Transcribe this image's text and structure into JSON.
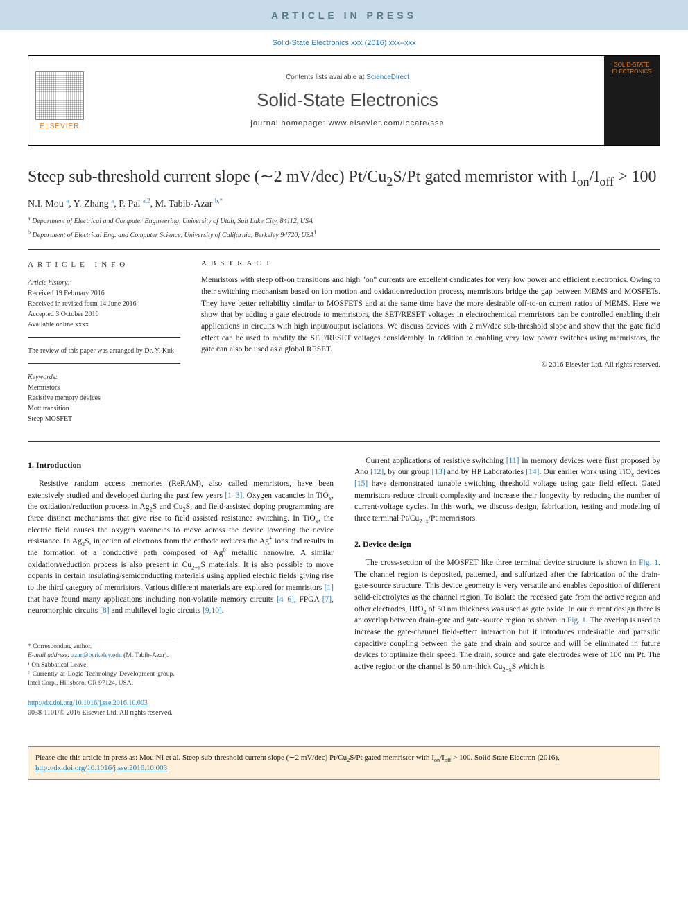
{
  "banner": "ARTICLE IN PRESS",
  "citation_top": "Solid-State Electronics xxx (2016) xxx–xxx",
  "header": {
    "contents_line_prefix": "Contents lists available at ",
    "contents_link": "ScienceDirect",
    "journal_title": "Solid-State Electronics",
    "homepage_label": "journal homepage: www.elsevier.com/locate/sse",
    "elsevier_label": "ELSEVIER",
    "cover_text": "SOLID-STATE ELECTRONICS"
  },
  "article": {
    "title_html": "Steep sub-threshold current slope (∼2 mV/dec) Pt/Cu<sub>2</sub>S/Pt gated memristor with I<sub>on</sub>/I<sub>off</sub> > 100",
    "authors_html": "N.I. Mou <sup>a</sup>, Y. Zhang <sup>a</sup>, P. Pai <sup>a,2</sup>, M. Tabib-Azar <sup>b,*</sup>",
    "affiliations": [
      "<sup>a</sup> Department of Electrical and Computer Engineering, University of Utah, Salt Lake City, 84112, USA",
      "<sup>b</sup> Department of Electrical Eng. and Computer Science, University of California, Berkeley 94720, USA<sup>1</sup>"
    ]
  },
  "info": {
    "heading": "ARTICLE INFO",
    "history_label": "Article history:",
    "history": [
      "Received 19 February 2016",
      "Received in revised form 14 June 2016",
      "Accepted 3 October 2016",
      "Available online xxxx"
    ],
    "review_note": "The review of this paper was arranged by Dr. Y. Kuk",
    "keywords_label": "Keywords:",
    "keywords": [
      "Memristors",
      "Resistive memory devices",
      "Mott transition",
      "Steep MOSFET"
    ]
  },
  "abstract": {
    "heading": "ABSTRACT",
    "text": "Memristors with steep off-on transitions and high \"on\" currents are excellent candidates for very low power and efficient electronics. Owing to their switching mechanism based on ion motion and oxidation/reduction process, memristors bridge the gap between MEMS and MOSFETs. They have better reliability similar to MOSFETS and at the same time have the more desirable off-to-on current ratios of MEMS. Here we show that by adding a gate electrode to memristors, the SET/RESET voltages in electrochemical memristors can be controlled enabling their applications in circuits with high input/output isolations. We discuss devices with 2 mV/dec sub-threshold slope and show that the gate field effect can be used to modify the SET/RESET voltages considerably. In addition to enabling very low power switches using memristors, the gate can also be used as a global RESET.",
    "copyright": "© 2016 Elsevier Ltd. All rights reserved."
  },
  "sections": {
    "intro_heading": "1. Introduction",
    "intro_p1_html": "Resistive random access memories (ReRAM), also called memristors, have been extensively studied and developed during the past few years <span class=\"ref-link\">[1–3]</span>. Oxygen vacancies in TiO<sub>x</sub>, the oxidation/reduction process in Ag<sub>2</sub>S and Cu<sub>2</sub>S, and field-assisted doping programming are three distinct mechanisms that give rise to field assisted resistance switching. In TiO<sub>x</sub>, the electric field causes the oxygen vacancies to move across the device lowering the device resistance. In Ag<sub>2</sub>S, injection of electrons from the cathode reduces the Ag<sup>+</sup> ions and results in the formation of a conductive path composed of Ag<sup>0</sup> metallic nanowire. A similar oxidation/reduction process is also present in Cu<sub>2−x</sub>S materials. It is also possible to move dopants in certain insulating/semiconducting materials using applied electric fields giving rise to the third category of memristors. Various different materials are explored for memristors <span class=\"ref-link\">[1]</span> that have found many applications including non-volatile memory circuits <span class=\"ref-link\">[4–6]</span>, FPGA <span class=\"ref-link\">[7]</span>, neuromorphic circuits <span class=\"ref-link\">[8]</span> and multilevel logic circuits <span class=\"ref-link\">[9,10]</span>.",
    "intro_p2_html": "Current applications of resistive switching <span class=\"ref-link\">[11]</span> in memory devices were first proposed by Ano <span class=\"ref-link\">[12]</span>, by our group <span class=\"ref-link\">[13]</span> and by HP Laboratories <span class=\"ref-link\">[14]</span>. Our earlier work using TiO<sub>x</sub> devices <span class=\"ref-link\">[15]</span> have demonstrated tunable switching threshold voltage using gate field effect. Gated memristors reduce circuit complexity and increase their longevity by reducing the number of current-voltage cycles. In this work, we discuss design, fabrication, testing and modeling of three terminal Pt/Cu<sub>2−x</sub>/Pt memristors.",
    "design_heading": "2. Device design",
    "design_p1_html": "The cross-section of the MOSFET like three terminal device structure is shown in <span class=\"ref-link\">Fig. 1</span>. The channel region is deposited, patterned, and sulfurized after the fabrication of the drain-gate-source structure. This device geometry is very versatile and enables deposition of different solid-electrolytes as the channel region. To isolate the recessed gate from the active region and other electrodes, HfO<sub>2</sub> of 50 nm thickness was used as gate oxide. In our current design there is an overlap between drain-gate and gate-source region as shown in <span class=\"ref-link\">Fig. 1</span>. The overlap is used to increase the gate-channel field-effect interaction but it introduces undesirable and parasitic capacitive coupling between the gate and drain and source and will be eliminated in future devices to optimize their speed. The drain, source and gate electrodes were of 100 nm Pt. The active region or the channel is 50 nm-thick Cu<sub>2−x</sub>S which is"
  },
  "footnotes": {
    "corresponding": "* Corresponding author.",
    "email_label": "E-mail address: ",
    "email": "azar@berkeley.edu",
    "email_suffix": " (M. Tabib-Azar).",
    "note1": "¹ On Sabbatical Leave.",
    "note2": "² Currently at Logic Technology Development group, Intel Corp., Hillsboro, OR 97124, USA."
  },
  "doi": {
    "url": "http://dx.doi.org/10.1016/j.sse.2016.10.003",
    "issn": "0038-1101/© 2016 Elsevier Ltd. All rights reserved."
  },
  "citebox_html": "Please cite this article in press as: Mou NI et al. Steep sub-threshold current slope (∼2 mV/dec) Pt/Cu<sub>2</sub>S/Pt gated memristor with I<sub>on</sub>/I<sub>off</sub> > 100. Solid State Electron (2016), <a href=\"#\">http://dx.doi.org/10.1016/j.sse.2016.10.003</a>",
  "colors": {
    "banner_bg": "#c8dbe8",
    "banner_text": "#5a7a8a",
    "link": "#2a7ab0",
    "elsevier": "#e67817",
    "citebox_bg": "#fef0d9"
  }
}
